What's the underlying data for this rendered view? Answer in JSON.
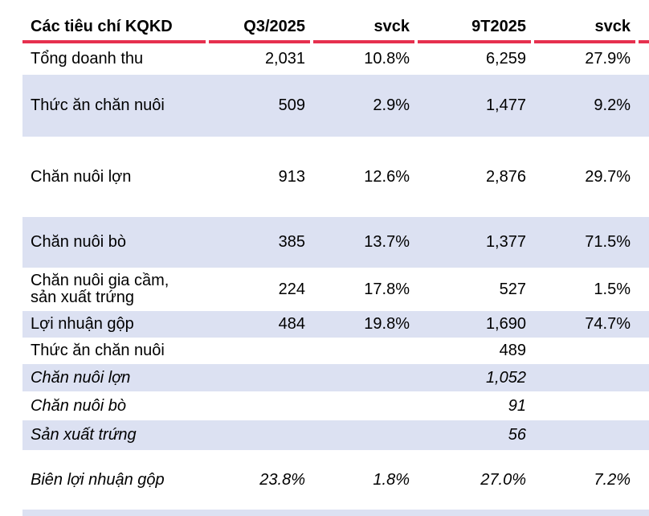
{
  "header": {
    "criteria": "Các tiêu chí KQKD",
    "col_q3": "Q3/2025",
    "col_svck_q3": "svck",
    "col_9t": "9T2025",
    "col_svck_9t": "svck"
  },
  "rows": [
    {
      "label": "Tổng doanh thu",
      "c1": "2,031",
      "c2": "10.8%",
      "c3": "6,259",
      "c4": "27.9%"
    },
    {
      "label": "Thức ăn chăn nuôi",
      "c1": "509",
      "c2": "2.9%",
      "c3": "1,477",
      "c4": "9.2%"
    },
    {
      "label": "Chăn nuôi lợn",
      "c1": "913",
      "c2": "12.6%",
      "c3": "2,876",
      "c4": "29.7%"
    },
    {
      "label": "Chăn nuôi bò",
      "c1": "385",
      "c2": "13.7%",
      "c3": "1,377",
      "c4": "71.5%"
    },
    {
      "label": "Chăn nuôi gia cầm,\nsản xuất trứng",
      "c1": "224",
      "c2": "17.8%",
      "c3": "527",
      "c4": "1.5%"
    },
    {
      "label": "Lợi nhuận gộp",
      "c1": "484",
      "c2": "19.8%",
      "c3": "1,690",
      "c4": "74.7%"
    },
    {
      "label": "Thức ăn chăn nuôi",
      "c1": "",
      "c2": "",
      "c3": "489",
      "c4": ""
    },
    {
      "label": "Chăn nuôi lợn",
      "c1": "",
      "c2": "",
      "c3": "1,052",
      "c4": ""
    },
    {
      "label": "Chăn nuôi bò",
      "c1": "",
      "c2": "",
      "c3": "91",
      "c4": ""
    },
    {
      "label": "Sản xuất trứng",
      "c1": "",
      "c2": "",
      "c3": "56",
      "c4": ""
    },
    {
      "label": "Biên lợi nhuận gộp",
      "c1": "23.8%",
      "c2": "1.8%",
      "c3": "27.0%",
      "c4": "7.2%"
    }
  ],
  "colors": {
    "accent_red": "#E6304E",
    "row_stripe": "#DCE1F2",
    "text": "#000000",
    "background": "#FFFFFF"
  }
}
